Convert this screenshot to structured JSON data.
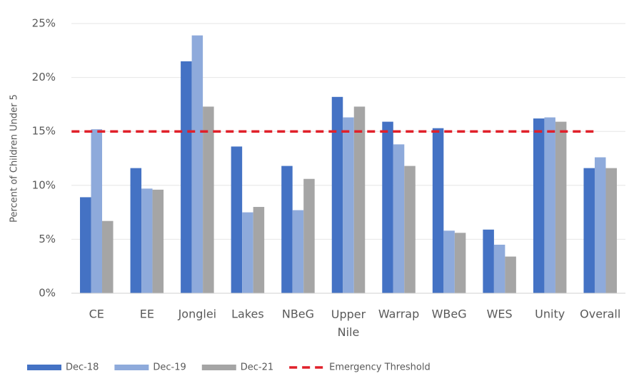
{
  "chart_data": {
    "type": "bar",
    "ylabel": "Percent of Children Under 5",
    "categories": [
      "CE",
      "EE",
      "Jonglei",
      "Lakes",
      "NBeG",
      "Upper Nile",
      "Warrap",
      "WBeG",
      "WES",
      "Unity",
      "Overall"
    ],
    "series": [
      {
        "name": "Dec-18",
        "color": "#4472c4",
        "values": [
          8.9,
          11.6,
          21.5,
          13.6,
          11.8,
          18.2,
          15.9,
          15.3,
          5.9,
          16.2,
          11.6
        ]
      },
      {
        "name": "Dec-19",
        "color": "#8eaadb",
        "values": [
          15.2,
          9.7,
          23.9,
          7.5,
          7.7,
          16.3,
          13.8,
          5.8,
          4.5,
          16.3,
          12.6
        ]
      },
      {
        "name": "Dec-21",
        "color": "#a5a5a5",
        "values": [
          6.7,
          9.6,
          17.3,
          8.0,
          10.6,
          17.3,
          11.8,
          5.6,
          3.4,
          15.9,
          11.6
        ]
      }
    ],
    "threshold": {
      "name": "Emergency Threshold",
      "value": 15,
      "color": "#e0202a"
    },
    "ylim": [
      0,
      25
    ],
    "yticks": [
      {
        "value": 0,
        "label": "0%"
      },
      {
        "value": 5,
        "label": "5%"
      },
      {
        "value": 10,
        "label": "10%"
      },
      {
        "value": 15,
        "label": "15%"
      },
      {
        "value": 20,
        "label": "20%"
      },
      {
        "value": 25,
        "label": "25%"
      }
    ],
    "grid": true,
    "legend": "bottom"
  }
}
